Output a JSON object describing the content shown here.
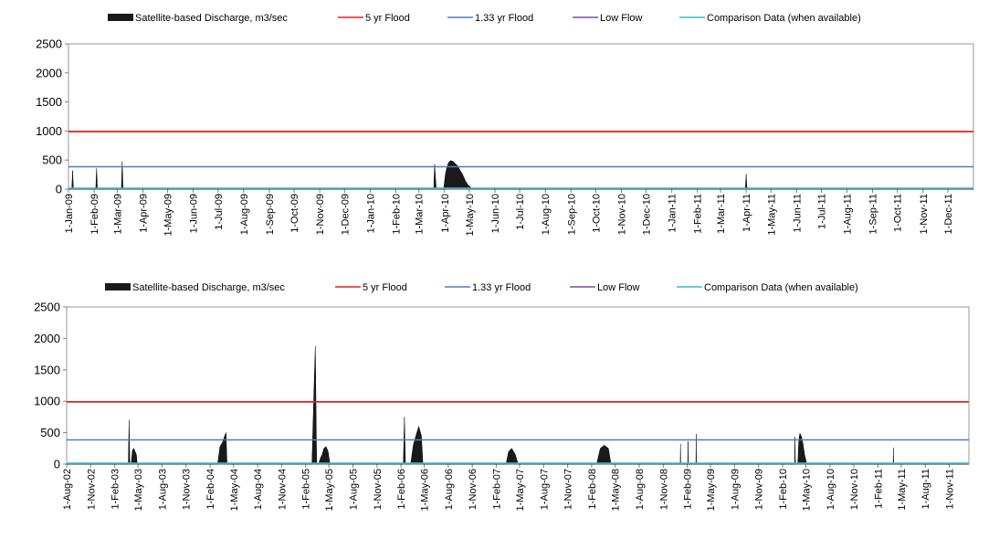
{
  "chart_data": [
    {
      "type": "area",
      "legend": [
        {
          "label": "Satellite-based Discharge, m3/sec",
          "color": "#1a1a1a",
          "kind": "area"
        },
        {
          "label": "5 yr Flood",
          "color": "#e02020",
          "kind": "line"
        },
        {
          "label": "1.33 yr Flood",
          "color": "#4a7ec0",
          "kind": "line"
        },
        {
          "label": "Low Flow",
          "color": "#7a4fa0",
          "kind": "line"
        },
        {
          "label": "Comparison Data (when available)",
          "color": "#3fb8c8",
          "kind": "line"
        }
      ],
      "legend_position": "top",
      "ylim": [
        0,
        2500
      ],
      "yticks": [
        "0",
        "500",
        "1000",
        "1500",
        "2000",
        "2500"
      ],
      "xlim": [
        "2009-01-01",
        "2012-01-01"
      ],
      "xticks": [
        "1-Jan-09",
        "1-Feb-09",
        "1-Mar-09",
        "1-Apr-09",
        "1-May-09",
        "1-Jun-09",
        "1-Jul-09",
        "1-Aug-09",
        "1-Sep-09",
        "1-Oct-09",
        "1-Nov-09",
        "1-Dec-09",
        "1-Jan-10",
        "1-Feb-10",
        "1-Mar-10",
        "1-Apr-10",
        "1-May-10",
        "1-Jun-10",
        "1-Jul-10",
        "1-Aug-10",
        "1-Sep-10",
        "1-Oct-10",
        "1-Nov-10",
        "1-Dec-10",
        "1-Jan-11",
        "1-Feb-11",
        "1-Mar-11",
        "1-Apr-11",
        "1-May-11",
        "1-Jun-11",
        "1-Jul-11",
        "1-Aug-11",
        "1-Sep-11",
        "1-Oct-11",
        "1-Nov-11",
        "1-Dec-11"
      ],
      "reference_lines": {
        "five_yr_flood": 990,
        "one_33_yr_flood": 385,
        "low_flow": 0
      },
      "discharge": [
        [
          "2009-01-05",
          0
        ],
        [
          "2009-01-06",
          320
        ],
        [
          "2009-01-07",
          0
        ],
        [
          "2009-02-03",
          0
        ],
        [
          "2009-02-04",
          360
        ],
        [
          "2009-02-05",
          0
        ],
        [
          "2009-03-06",
          0
        ],
        [
          "2009-03-07",
          480
        ],
        [
          "2009-03-08",
          0
        ],
        [
          "2010-03-19",
          0
        ],
        [
          "2010-03-20",
          430
        ],
        [
          "2010-03-22",
          0
        ],
        [
          "2010-03-31",
          0
        ],
        [
          "2010-04-02",
          250
        ],
        [
          "2010-04-04",
          380
        ],
        [
          "2010-04-06",
          460
        ],
        [
          "2010-04-08",
          490
        ],
        [
          "2010-04-11",
          480
        ],
        [
          "2010-04-14",
          440
        ],
        [
          "2010-04-17",
          400
        ],
        [
          "2010-04-20",
          320
        ],
        [
          "2010-04-23",
          250
        ],
        [
          "2010-04-26",
          150
        ],
        [
          "2010-04-29",
          80
        ],
        [
          "2010-05-02",
          40
        ],
        [
          "2010-05-05",
          0
        ],
        [
          "2011-03-31",
          0
        ],
        [
          "2011-04-01",
          260
        ],
        [
          "2011-04-02",
          0
        ]
      ]
    },
    {
      "type": "area",
      "legend": [
        {
          "label": "Satellite-based Discharge, m3/sec",
          "color": "#1a1a1a",
          "kind": "area"
        },
        {
          "label": "5 yr Flood",
          "color": "#e02020",
          "kind": "line"
        },
        {
          "label": "1.33 yr Flood",
          "color": "#4a7ec0",
          "kind": "line"
        },
        {
          "label": "Low Flow",
          "color": "#7a4fa0",
          "kind": "line"
        },
        {
          "label": "Comparison Data (when available)",
          "color": "#3fb8c8",
          "kind": "line"
        }
      ],
      "legend_position": "top",
      "ylim": [
        0,
        2500
      ],
      "yticks": [
        "0",
        "500",
        "1000",
        "1500",
        "2000",
        "2500"
      ],
      "xlim": [
        "2002-08-01",
        "2012-01-15"
      ],
      "xticks": [
        "1-Aug-02",
        "1-Nov-02",
        "1-Feb-03",
        "1-May-03",
        "1-Aug-03",
        "1-Nov-03",
        "1-Feb-04",
        "1-May-04",
        "1-Aug-04",
        "1-Nov-04",
        "1-Feb-05",
        "1-May-05",
        "1-Aug-05",
        "1-Nov-05",
        "1-Feb-06",
        "1-May-06",
        "1-Aug-06",
        "1-Nov-06",
        "1-Feb-07",
        "1-May-07",
        "1-Aug-07",
        "1-Nov-07",
        "1-Feb-08",
        "1-May-08",
        "1-Aug-08",
        "1-Nov-08",
        "1-Feb-09",
        "1-May-09",
        "1-Aug-09",
        "1-Nov-09",
        "1-Feb-10",
        "1-May-10",
        "1-Aug-10",
        "1-Nov-10",
        "1-Feb-11",
        "1-May-11",
        "1-Aug-11",
        "1-Nov-11"
      ],
      "reference_lines": {
        "five_yr_flood": 990,
        "one_33_yr_flood": 385,
        "low_flow": 0
      },
      "discharge": [
        [
          "2003-03-25",
          0
        ],
        [
          "2003-03-28",
          700
        ],
        [
          "2003-03-31",
          0
        ],
        [
          "2003-04-05",
          0
        ],
        [
          "2003-04-10",
          220
        ],
        [
          "2003-04-15",
          250
        ],
        [
          "2003-04-20",
          200
        ],
        [
          "2003-04-25",
          150
        ],
        [
          "2003-04-28",
          0
        ],
        [
          "2004-03-01",
          0
        ],
        [
          "2004-03-10",
          280
        ],
        [
          "2004-03-20",
          350
        ],
        [
          "2004-03-28",
          450
        ],
        [
          "2004-04-02",
          500
        ],
        [
          "2004-04-06",
          0
        ],
        [
          "2005-02-25",
          0
        ],
        [
          "2005-03-05",
          1200
        ],
        [
          "2005-03-10",
          1880
        ],
        [
          "2005-03-15",
          0
        ],
        [
          "2005-03-22",
          0
        ],
        [
          "2005-03-30",
          100
        ],
        [
          "2005-04-05",
          150
        ],
        [
          "2005-04-12",
          250
        ],
        [
          "2005-04-20",
          280
        ],
        [
          "2005-04-28",
          200
        ],
        [
          "2005-05-05",
          0
        ],
        [
          "2006-02-10",
          0
        ],
        [
          "2006-02-14",
          750
        ],
        [
          "2006-02-18",
          0
        ],
        [
          "2006-03-10",
          0
        ],
        [
          "2006-03-20",
          300
        ],
        [
          "2006-03-30",
          450
        ],
        [
          "2006-04-10",
          600
        ],
        [
          "2006-04-20",
          450
        ],
        [
          "2006-04-26",
          0
        ],
        [
          "2007-03-10",
          0
        ],
        [
          "2007-03-20",
          200
        ],
        [
          "2007-04-01",
          250
        ],
        [
          "2007-04-15",
          150
        ],
        [
          "2007-04-25",
          0
        ],
        [
          "2008-02-20",
          0
        ],
        [
          "2008-03-05",
          250
        ],
        [
          "2008-03-20",
          300
        ],
        [
          "2008-04-05",
          250
        ],
        [
          "2008-04-15",
          0
        ],
        [
          "2009-01-05",
          0
        ],
        [
          "2009-01-06",
          320
        ],
        [
          "2009-01-07",
          0
        ],
        [
          "2009-02-03",
          0
        ],
        [
          "2009-02-04",
          360
        ],
        [
          "2009-02-05",
          0
        ],
        [
          "2009-03-06",
          0
        ],
        [
          "2009-03-07",
          480
        ],
        [
          "2009-03-08",
          0
        ],
        [
          "2010-03-19",
          0
        ],
        [
          "2010-03-20",
          430
        ],
        [
          "2010-03-22",
          0
        ],
        [
          "2010-03-31",
          0
        ],
        [
          "2010-04-04",
          380
        ],
        [
          "2010-04-08",
          490
        ],
        [
          "2010-04-14",
          440
        ],
        [
          "2010-04-20",
          320
        ],
        [
          "2010-04-26",
          150
        ],
        [
          "2010-05-05",
          0
        ],
        [
          "2011-03-31",
          0
        ],
        [
          "2011-04-01",
          260
        ],
        [
          "2011-04-02",
          0
        ]
      ]
    }
  ]
}
